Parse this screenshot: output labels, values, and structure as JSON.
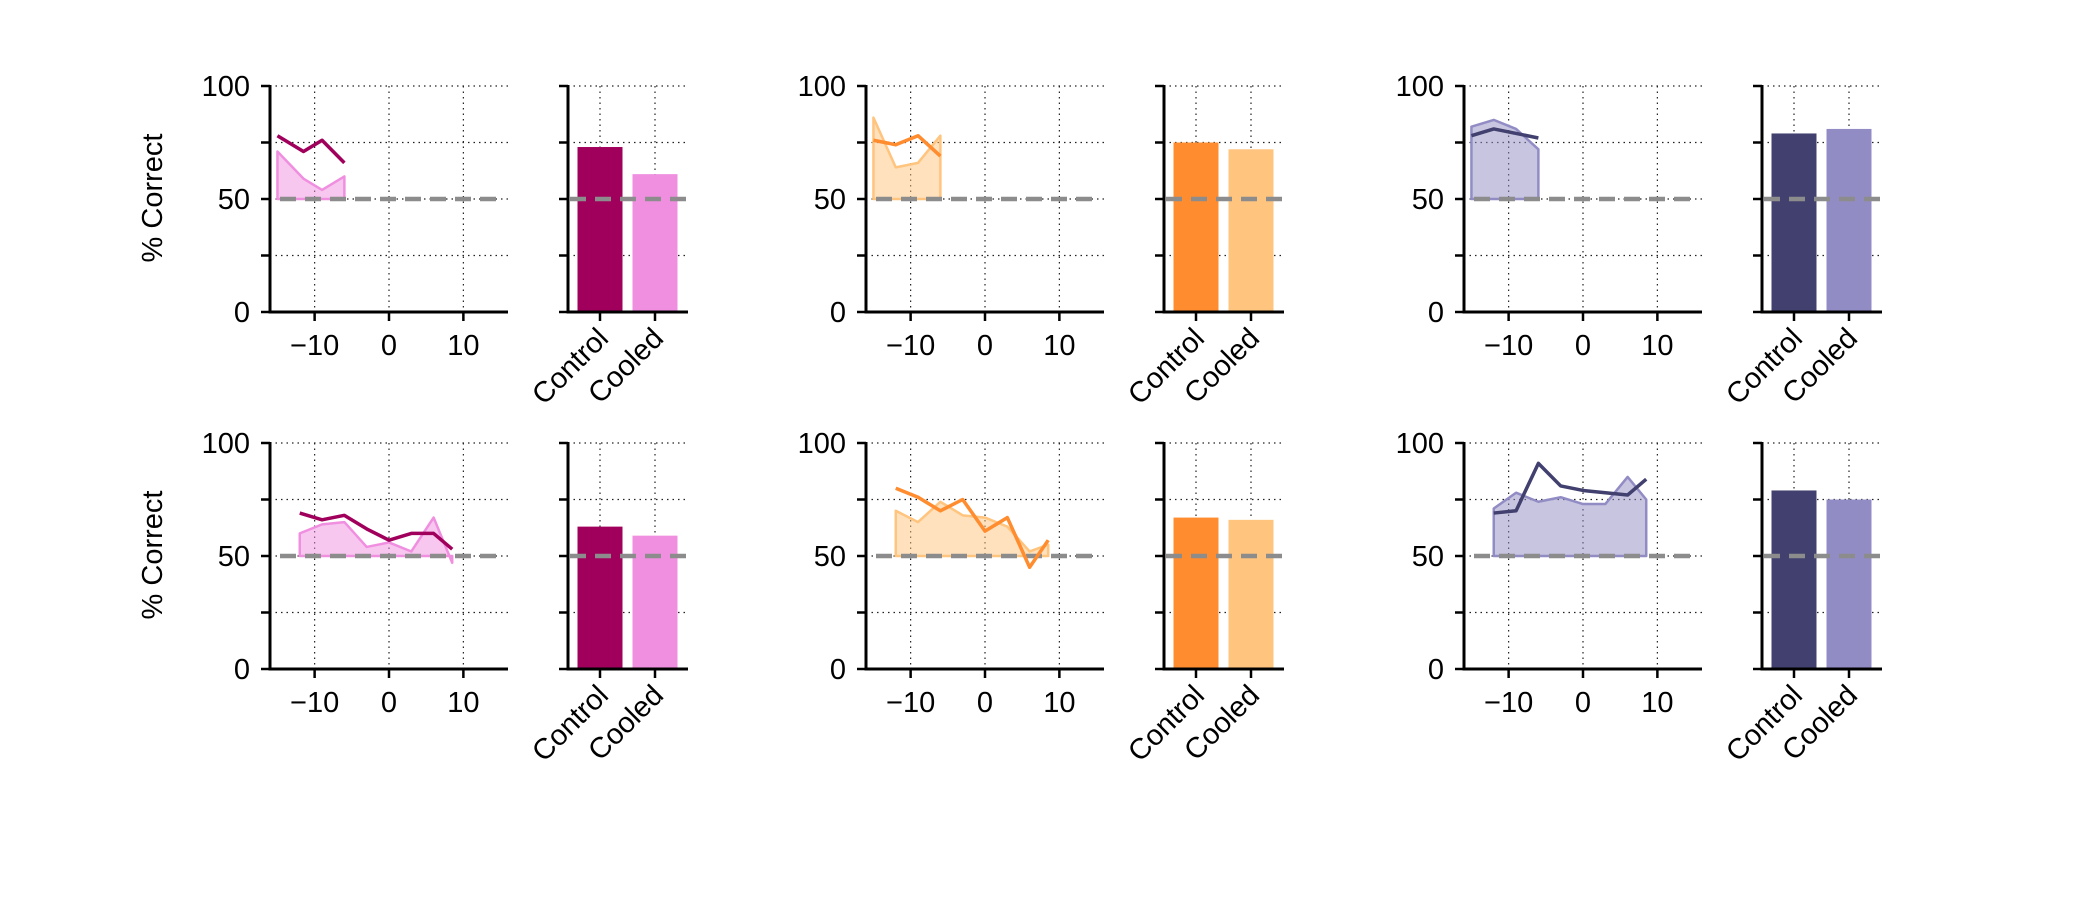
{
  "figure": {
    "ylabel": "% Correct"
  },
  "chart_data": [
    {
      "type": "line",
      "panel": "row1-col1-line",
      "x_ticks": [
        -10,
        0,
        10
      ],
      "y_ticks": [
        0,
        50,
        100
      ],
      "xlim": [
        -16,
        16
      ],
      "ylim": [
        0,
        100
      ],
      "ylabel": "% Correct",
      "grid": true,
      "chance_level": 50,
      "series": [
        {
          "role": "control",
          "color": "#a0005c",
          "x": [
            -15,
            -11.5,
            -9,
            -6
          ],
          "y": [
            78,
            71,
            76,
            66
          ]
        },
        {
          "role": "cooled",
          "color": "#f08fe0",
          "fill": true,
          "x": [
            -15,
            -11.5,
            -9,
            -6
          ],
          "y": [
            71,
            59,
            54,
            60
          ]
        }
      ]
    },
    {
      "type": "bar",
      "panel": "row1-col1-bar",
      "categories": [
        "Control",
        "Cooled"
      ],
      "values": [
        73,
        61
      ],
      "colors": [
        "#a0005c",
        "#f08fe0"
      ],
      "ylim": [
        0,
        100
      ],
      "chance_level": 50
    },
    {
      "type": "line",
      "panel": "row1-col2-line",
      "x_ticks": [
        -10,
        0,
        10
      ],
      "y_ticks": [
        0,
        50,
        100
      ],
      "xlim": [
        -16,
        16
      ],
      "ylim": [
        0,
        100
      ],
      "grid": true,
      "chance_level": 50,
      "series": [
        {
          "role": "control",
          "color": "#ff8c2e",
          "x": [
            -15,
            -12,
            -9,
            -6
          ],
          "y": [
            76,
            74,
            78,
            69
          ]
        },
        {
          "role": "cooled",
          "color": "#ffc47e",
          "fill": true,
          "x": [
            -15,
            -12,
            -9,
            -6
          ],
          "y": [
            86,
            64,
            66,
            78
          ]
        }
      ]
    },
    {
      "type": "bar",
      "panel": "row1-col2-bar",
      "categories": [
        "Control",
        "Cooled"
      ],
      "values": [
        75,
        72
      ],
      "colors": [
        "#ff8c2e",
        "#ffc47e"
      ],
      "ylim": [
        0,
        100
      ],
      "chance_level": 50
    },
    {
      "type": "line",
      "panel": "row1-col3-line",
      "x_ticks": [
        -10,
        0,
        10
      ],
      "y_ticks": [
        0,
        50,
        100
      ],
      "xlim": [
        -16,
        16
      ],
      "ylim": [
        0,
        100
      ],
      "grid": true,
      "chance_level": 50,
      "series": [
        {
          "role": "control",
          "color": "#41406e",
          "x": [
            -15,
            -12,
            -9,
            -6
          ],
          "y": [
            78,
            81,
            79,
            77
          ]
        },
        {
          "role": "cooled",
          "color": "#918cc4",
          "fill": true,
          "x": [
            -15,
            -12,
            -9,
            -6
          ],
          "y": [
            82,
            85,
            81,
            72
          ]
        }
      ]
    },
    {
      "type": "bar",
      "panel": "row1-col3-bar",
      "categories": [
        "Control",
        "Cooled"
      ],
      "values": [
        79,
        81
      ],
      "colors": [
        "#41406e",
        "#918cc4"
      ],
      "ylim": [
        0,
        100
      ],
      "chance_level": 50
    },
    {
      "type": "line",
      "panel": "row2-col1-line",
      "x_ticks": [
        -10,
        0,
        10
      ],
      "y_ticks": [
        0,
        50,
        100
      ],
      "xlim": [
        -16,
        16
      ],
      "ylim": [
        0,
        100
      ],
      "ylabel": "% Correct",
      "grid": true,
      "chance_level": 50,
      "series": [
        {
          "role": "control",
          "color": "#a0005c",
          "x": [
            -12,
            -9,
            -6,
            -3,
            0,
            3,
            6,
            8.5
          ],
          "y": [
            69,
            66,
            68,
            62,
            57,
            60,
            60,
            53
          ]
        },
        {
          "role": "cooled",
          "color": "#f08fe0",
          "fill": true,
          "x": [
            -12,
            -9,
            -6,
            -3,
            0,
            3,
            6,
            8.5
          ],
          "y": [
            60,
            64,
            65,
            54,
            56,
            52,
            67,
            47
          ]
        }
      ]
    },
    {
      "type": "bar",
      "panel": "row2-col1-bar",
      "categories": [
        "Control",
        "Cooled"
      ],
      "values": [
        63,
        59
      ],
      "colors": [
        "#a0005c",
        "#f08fe0"
      ],
      "ylim": [
        0,
        100
      ],
      "chance_level": 50
    },
    {
      "type": "line",
      "panel": "row2-col2-line",
      "x_ticks": [
        -10,
        0,
        10
      ],
      "y_ticks": [
        0,
        50,
        100
      ],
      "xlim": [
        -16,
        16
      ],
      "ylim": [
        0,
        100
      ],
      "grid": true,
      "chance_level": 50,
      "series": [
        {
          "role": "control",
          "color": "#ff8c2e",
          "x": [
            -12,
            -9,
            -6,
            -3,
            0,
            3,
            6,
            8.5
          ],
          "y": [
            80,
            76,
            70,
            75,
            61,
            67,
            45,
            57
          ]
        },
        {
          "role": "cooled",
          "color": "#ffc47e",
          "fill": true,
          "x": [
            -12,
            -9,
            -6,
            -3,
            0,
            3,
            6,
            8.5
          ],
          "y": [
            70,
            65,
            74,
            68,
            67,
            63,
            52,
            55
          ]
        }
      ]
    },
    {
      "type": "bar",
      "panel": "row2-col2-bar",
      "categories": [
        "Control",
        "Cooled"
      ],
      "values": [
        67,
        66
      ],
      "colors": [
        "#ff8c2e",
        "#ffc47e"
      ],
      "ylim": [
        0,
        100
      ],
      "chance_level": 50
    },
    {
      "type": "line",
      "panel": "row2-col3-line",
      "x_ticks": [
        -10,
        0,
        10
      ],
      "y_ticks": [
        0,
        50,
        100
      ],
      "xlim": [
        -16,
        16
      ],
      "ylim": [
        0,
        100
      ],
      "grid": true,
      "chance_level": 50,
      "series": [
        {
          "role": "control",
          "color": "#41406e",
          "x": [
            -12,
            -9,
            -6,
            -3,
            0,
            3,
            6,
            8.5
          ],
          "y": [
            69,
            70,
            91,
            81,
            79,
            78,
            77,
            84
          ]
        },
        {
          "role": "cooled",
          "color": "#918cc4",
          "fill": true,
          "x": [
            -12,
            -9,
            -6,
            -3,
            0,
            3,
            6,
            8.5
          ],
          "y": [
            71,
            78,
            74,
            76,
            73,
            73,
            85,
            75
          ]
        }
      ]
    },
    {
      "type": "bar",
      "panel": "row2-col3-bar",
      "categories": [
        "Control",
        "Cooled"
      ],
      "values": [
        79,
        75
      ],
      "colors": [
        "#41406e",
        "#918cc4"
      ],
      "ylim": [
        0,
        100
      ],
      "chance_level": 50
    }
  ]
}
